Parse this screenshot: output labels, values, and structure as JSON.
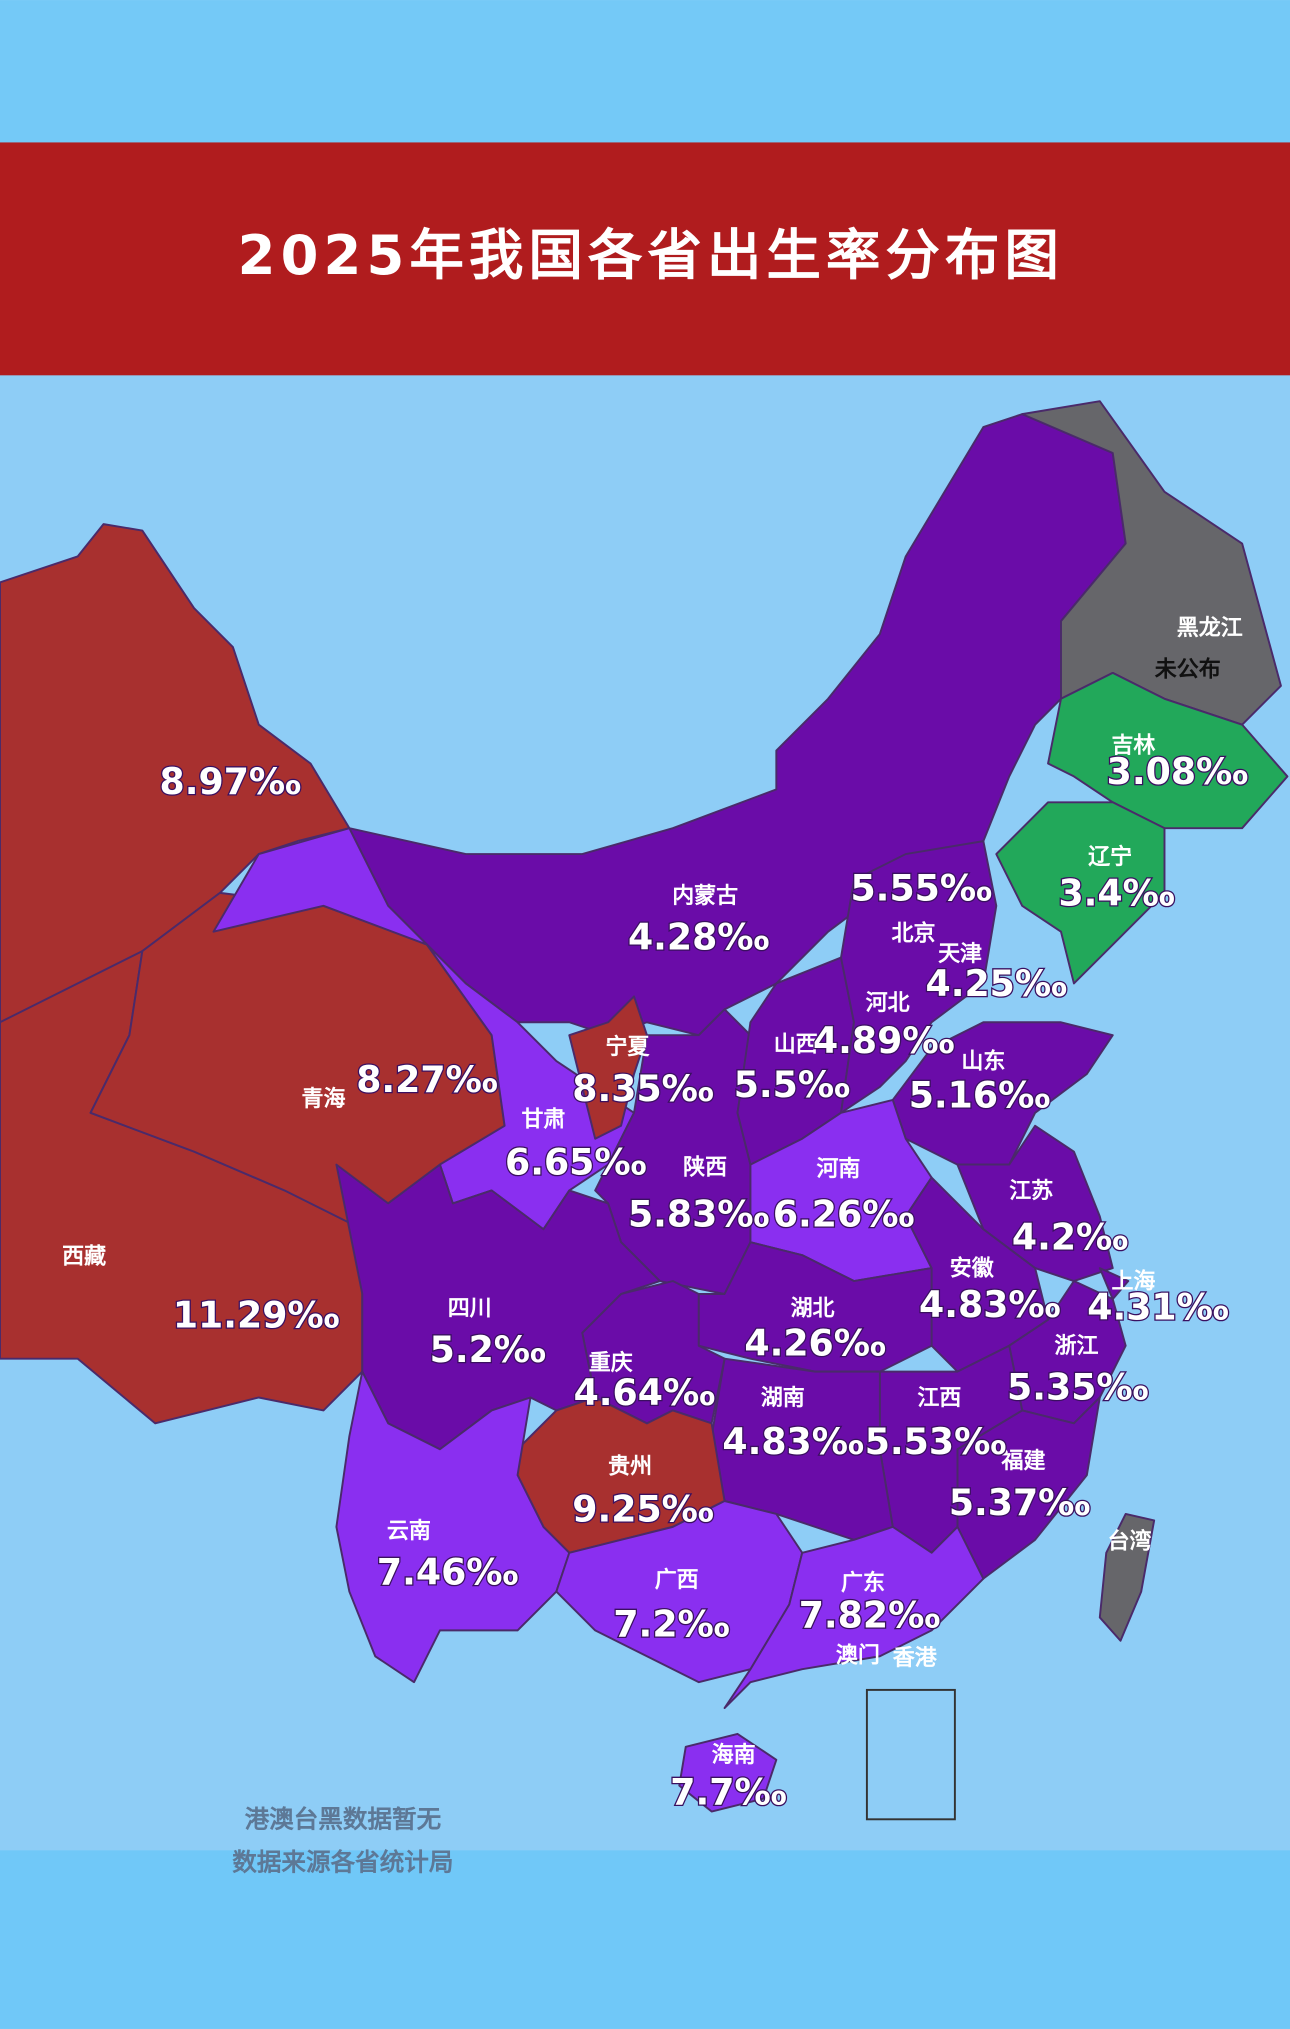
{
  "title": "2025年我国各省出生率分布图",
  "provinces": [
    {
      "rate": "8.97‰",
      "color": "#a8302f"
    },
    {
      "name": "西藏",
      "rate": "11.29‰",
      "color": "#a8302f"
    },
    {
      "name": "青海",
      "rate": "8.27‰",
      "color": "#a8302f"
    },
    {
      "name": "甘肃",
      "rate": "6.65‰",
      "color": "#8a2ff0"
    },
    {
      "name": "内蒙古",
      "rate": "4.28‰",
      "color": "#6a0ca8"
    },
    {
      "name": "黑龙江",
      "rate": "未公布",
      "color": "#66666a"
    },
    {
      "name": "吉林",
      "rate": "3.08‰",
      "color": "#22a85a"
    },
    {
      "name": "辽宁",
      "rate": "3.4‰",
      "color": "#22a85a"
    },
    {
      "name": "宁夏",
      "rate": "8.35‰",
      "color": "#a8302f"
    },
    {
      "name": "陕西",
      "rate": "5.83‰",
      "color": "#6a0ca8"
    },
    {
      "name": "山西",
      "rate": "5.5‰",
      "color": "#6a0ca8"
    },
    {
      "name": "河北",
      "rate": "4.89‰",
      "color": "#6a0ca8"
    },
    {
      "name": "山东",
      "rate": "5.16‰",
      "color": "#6a0ca8"
    },
    {
      "name": "河南",
      "rate": "6.26‰",
      "color": "#8a2ff0"
    },
    {
      "name": "江苏",
      "rate": "4.2‰",
      "color": "#6a0ca8"
    },
    {
      "name": "安徽",
      "rate": "4.83‰",
      "color": "#6a0ca8"
    },
    {
      "name": "上海",
      "rate": "4.31‰",
      "color": "#6a0ca8"
    },
    {
      "name": "浙江",
      "rate": "5.35‰",
      "color": "#6a0ca8"
    },
    {
      "name": "福建",
      "rate": "5.37‰",
      "color": "#6a0ca8"
    },
    {
      "name": "江西",
      "rate": "5.53‰",
      "color": "#6a0ca8"
    },
    {
      "name": "湖北",
      "rate": "4.26‰",
      "color": "#6a0ca8"
    },
    {
      "name": "湖南",
      "rate": "4.83‰",
      "color": "#6a0ca8"
    },
    {
      "name": "重庆",
      "rate": "4.64‰",
      "color": "#6a0ca8"
    },
    {
      "name": "四川",
      "rate": "5.2‰",
      "color": "#6a0ca8"
    },
    {
      "name": "贵州",
      "rate": "9.25‰",
      "color": "#a8302f"
    },
    {
      "name": "云南",
      "rate": "7.46‰",
      "color": "#8a2ff0"
    },
    {
      "name": "广西",
      "rate": "7.2‰",
      "color": "#8a2ff0"
    },
    {
      "name": "广东",
      "rate": "7.82‰",
      "color": "#8a2ff0"
    },
    {
      "name": "海南",
      "rate": "7.7‰",
      "color": "#8a2ff0"
    },
    {
      "name": "台湾",
      "color": "#66666a"
    },
    {
      "name": "北京",
      "rate": "5.55‰"
    },
    {
      "name": "天津",
      "rate": "4.25‰"
    },
    {
      "name": "香港"
    },
    {
      "name": "澳门"
    }
  ],
  "notes": [
    "港澳台黑数据暂无",
    "数据来源各省统计局"
  ]
}
